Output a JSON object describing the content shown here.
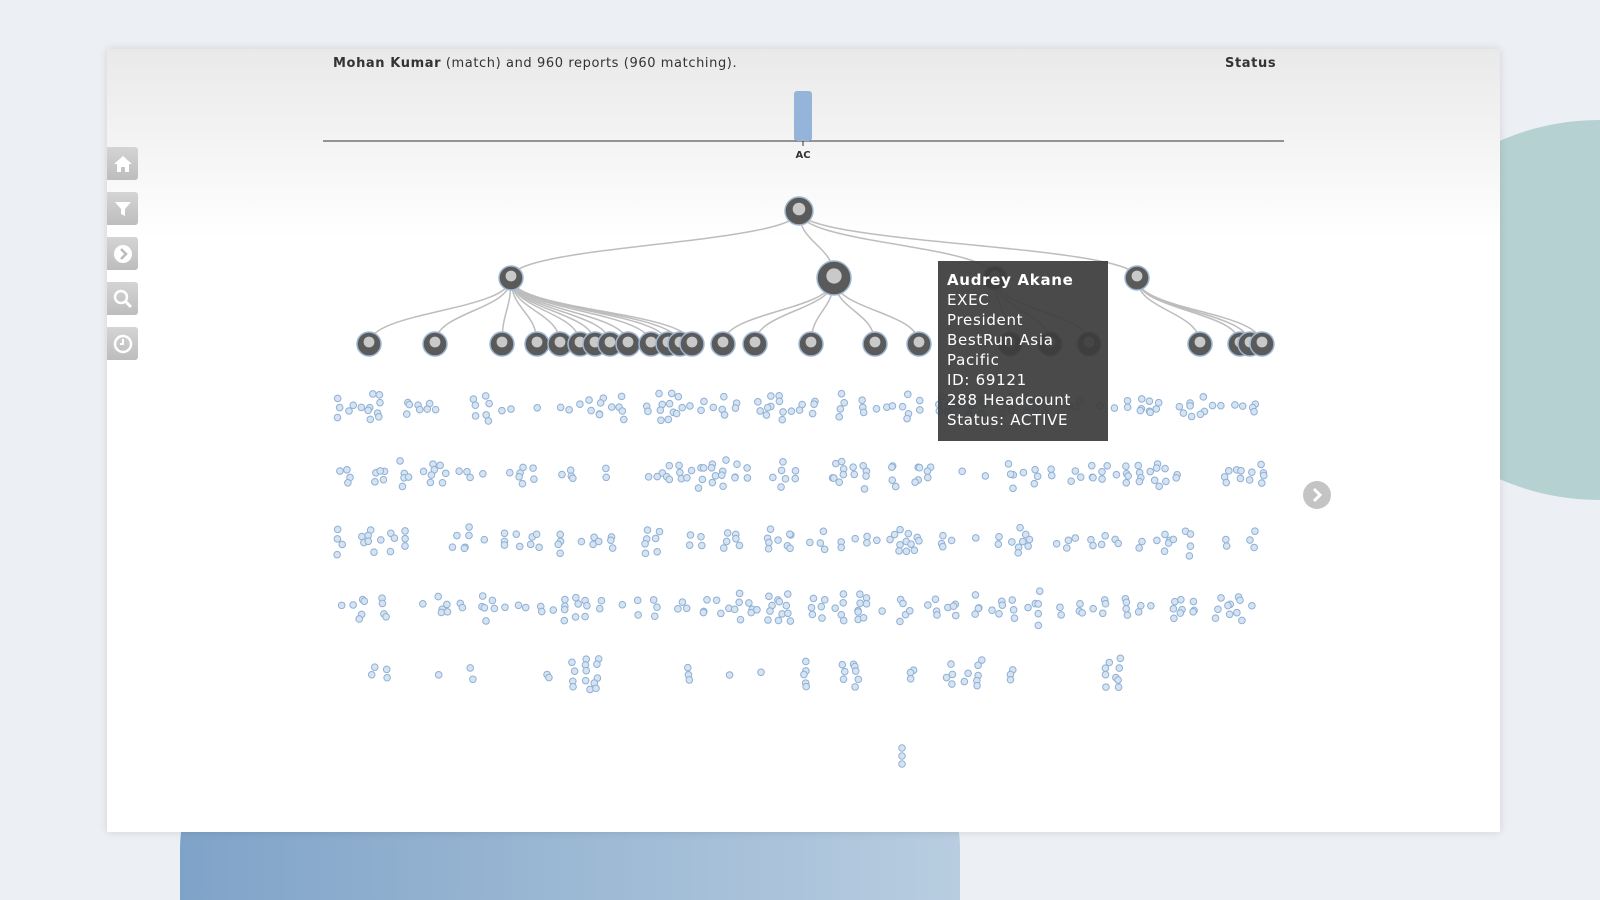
{
  "header": {
    "match_name": "Mohan Kumar",
    "summary": " (match) and 960 reports (960 matching).",
    "status_label": "Status"
  },
  "histogram": {
    "categories": [
      "AC"
    ],
    "values": [
      960
    ],
    "bar_color": "#94b5d9"
  },
  "sidebar": {
    "items": [
      {
        "icon": "home-icon"
      },
      {
        "icon": "filter-icon"
      },
      {
        "icon": "chevron-right-circle-icon"
      },
      {
        "icon": "search-icon"
      },
      {
        "icon": "clock-icon"
      }
    ]
  },
  "tooltip": {
    "name": "Audrey Akane",
    "lines": [
      "EXEC",
      "President",
      "BestRun Asia",
      "Pacific",
      "ID: 69121",
      "288 Headcount",
      "Status: ACTIVE"
    ]
  },
  "colors": {
    "node_fill": "#d6e3f1",
    "node_stroke": "#8fb0d6",
    "link": "#bdbdbd"
  }
}
